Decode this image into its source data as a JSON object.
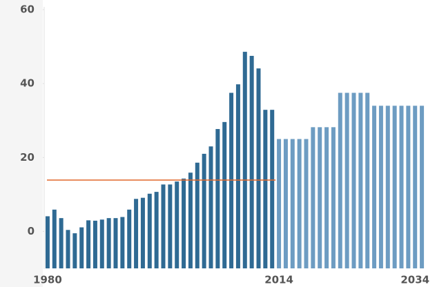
{
  "chart_data": {
    "type": "bar",
    "categories": [
      "1980",
      null,
      null,
      null,
      null,
      null,
      null,
      null,
      null,
      null,
      null,
      null,
      null,
      null,
      null,
      null,
      null,
      null,
      null,
      null,
      null,
      null,
      null,
      null,
      null,
      null,
      null,
      null,
      null,
      null,
      null,
      null,
      null,
      null,
      "2014",
      null,
      null,
      null,
      null,
      null,
      null,
      null,
      null,
      null,
      null,
      null,
      null,
      null,
      null,
      null,
      null,
      null,
      null,
      null,
      "2034",
      null
    ],
    "series": [
      {
        "color": "#2f6a93",
        "values": [
          4.1,
          5.9,
          3.6,
          0.4,
          -0.5,
          1.1,
          3,
          2.9,
          3.2,
          3.6,
          3.6,
          3.9,
          5.9,
          8.8,
          9.1,
          10.2,
          10.7,
          12.7,
          12.7,
          13.5,
          14.3,
          15.9,
          18.6,
          21,
          23,
          27.7,
          29.6,
          37.5,
          39.8,
          48.6,
          47.5,
          44.1,
          32.9,
          32.9,
          null,
          null,
          null,
          null,
          null,
          null,
          null,
          null,
          null,
          null,
          null,
          null,
          null,
          null,
          null,
          null,
          null,
          null,
          null,
          null,
          null,
          null
        ]
      },
      {
        "color": "#6d9cc2",
        "values": [
          null,
          null,
          null,
          null,
          null,
          null,
          null,
          null,
          null,
          null,
          null,
          null,
          null,
          null,
          null,
          null,
          null,
          null,
          null,
          null,
          null,
          null,
          null,
          null,
          null,
          null,
          null,
          null,
          null,
          null,
          null,
          null,
          null,
          null,
          25,
          25,
          25,
          25,
          25,
          28.2,
          28.2,
          28.2,
          28.2,
          37.5,
          37.5,
          37.5,
          37.5,
          37.5,
          34,
          34,
          34,
          34,
          34,
          34,
          34,
          34
        ]
      }
    ],
    "reference_line": {
      "value": 13.9,
      "color": "#e0662a"
    },
    "ylim": [
      -10,
      60
    ],
    "yticks": [
      0,
      20,
      40,
      60
    ]
  }
}
